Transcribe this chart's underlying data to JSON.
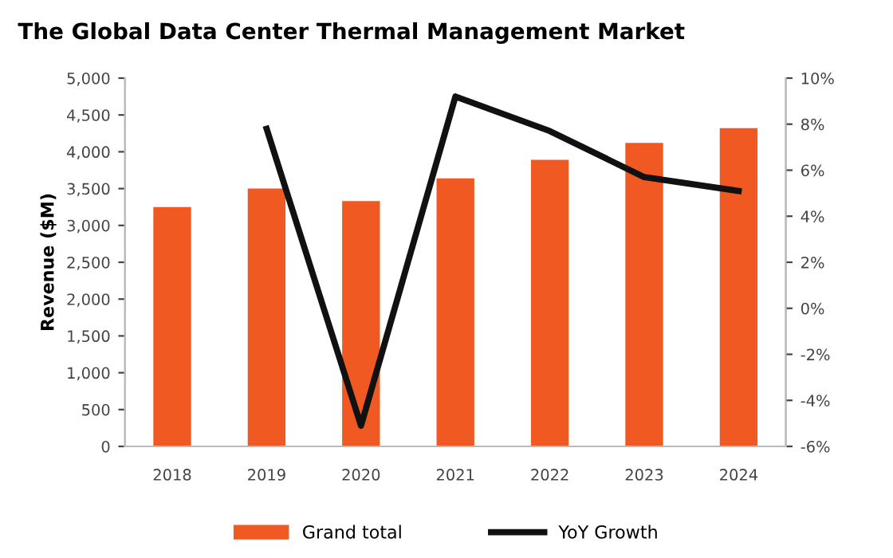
{
  "chart_data": {
    "type": "bar",
    "title": "The Global Data Center Thermal Management Market",
    "ylabel": "Revenue ($M)",
    "categories": [
      "2018",
      "2019",
      "2020",
      "2021",
      "2022",
      "2023",
      "2024"
    ],
    "series": [
      {
        "name": "Grand total",
        "color": "#f05a22",
        "values": [
          3250,
          3500,
          3330,
          3640,
          3890,
          4120,
          4320
        ]
      },
      {
        "name": "YoY Growth",
        "type": "line",
        "axis": "y2",
        "color": "#111111",
        "marker": "none",
        "line_style": "solid",
        "values": [
          null,
          7.8,
          -5.1,
          9.2,
          7.7,
          5.7,
          5.1
        ]
      }
    ],
    "ylim": [
      0,
      5000
    ],
    "yticks": [
      0,
      {
        "value": 500,
        "label": "500"
      },
      {
        "value": 1000,
        "label": "1,000"
      },
      {
        "value": 1500,
        "label": "1,500"
      },
      {
        "value": 2000,
        "label": "2,000"
      },
      {
        "value": 2500,
        "label": "2,500"
      },
      {
        "value": 3000,
        "label": "3,000"
      },
      {
        "value": 3500,
        "label": "3,500"
      },
      {
        "value": 4000,
        "label": "4,000"
      },
      {
        "value": 4500,
        "label": "4,500"
      },
      {
        "value": 5000,
        "label": "5,000"
      }
    ],
    "y2lim": [
      -6,
      10
    ],
    "y2ticks": [
      {
        "value": -6,
        "label": "-6%"
      },
      {
        "value": -4,
        "label": "-4%"
      },
      {
        "value": -2,
        "label": "-2%"
      },
      {
        "value": 0,
        "label": "0%"
      },
      {
        "value": 2,
        "label": "2%"
      },
      {
        "value": 4,
        "label": "4%"
      },
      {
        "value": 6,
        "label": "6%"
      },
      {
        "value": 8,
        "label": "8%"
      },
      {
        "value": 10,
        "label": "10%"
      }
    ],
    "grid": false,
    "legend": "bottom"
  }
}
